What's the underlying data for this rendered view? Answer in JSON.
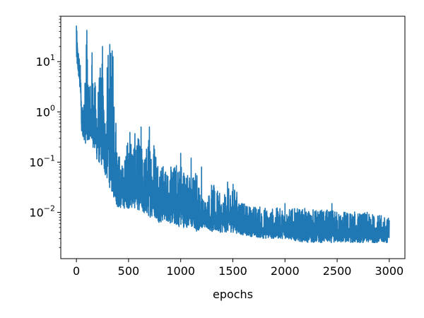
{
  "chart_data": {
    "type": "line",
    "title": "",
    "xlabel": "epochs",
    "ylabel": "",
    "xlim": [
      -150,
      3150
    ],
    "ylim": [
      0.0012,
      80
    ],
    "yscale": "log",
    "grid": false,
    "legend": "none",
    "x_ticks": [
      {
        "value": 0,
        "label": "0"
      },
      {
        "value": 500,
        "label": "500"
      },
      {
        "value": 1000,
        "label": "1000"
      },
      {
        "value": 1500,
        "label": "1500"
      },
      {
        "value": 2000,
        "label": "2000"
      },
      {
        "value": 2500,
        "label": "2500"
      },
      {
        "value": 3000,
        "label": "3000"
      }
    ],
    "y_ticks": [
      {
        "value": 0.01,
        "base": "10",
        "exp": "−2"
      },
      {
        "value": 0.1,
        "base": "10",
        "exp": "−1"
      },
      {
        "value": 1,
        "base": "10",
        "exp": "0"
      },
      {
        "value": 10,
        "base": "10",
        "exp": "1"
      }
    ],
    "series": [
      {
        "color": "#1f77b4",
        "envelope": {
          "x": [
            0,
            20,
            40,
            50,
            80,
            100,
            120,
            150,
            180,
            200,
            250,
            280,
            300,
            350,
            400,
            450,
            500,
            550,
            600,
            650,
            700,
            750,
            800,
            850,
            900,
            1000,
            1100,
            1150,
            1200,
            1250,
            1300,
            1400,
            1500,
            1600,
            1800,
            2000,
            2200,
            2500,
            2800,
            3000
          ],
          "high": [
            50,
            20,
            8,
            1.0,
            4,
            40,
            3,
            12,
            4,
            3,
            18,
            0.6,
            20,
            18,
            0.2,
            0.08,
            0.5,
            0.4,
            0.3,
            0.15,
            0.4,
            0.35,
            0.12,
            0.08,
            0.08,
            0.12,
            0.05,
            0.08,
            0.02,
            0.02,
            0.04,
            0.02,
            0.04,
            0.015,
            0.013,
            0.012,
            0.012,
            0.011,
            0.01,
            0.008
          ],
          "low": [
            10,
            5,
            2,
            0.4,
            0.25,
            0.2,
            0.3,
            0.22,
            0.15,
            0.1,
            0.08,
            0.05,
            0.04,
            0.02,
            0.012,
            0.012,
            0.012,
            0.012,
            0.011,
            0.009,
            0.008,
            0.008,
            0.006,
            0.007,
            0.006,
            0.005,
            0.005,
            0.004,
            0.005,
            0.005,
            0.004,
            0.004,
            0.004,
            0.0035,
            0.003,
            0.003,
            0.0025,
            0.0025,
            0.0025,
            0.0025
          ]
        },
        "spikes": [
          [
            0,
            52
          ],
          [
            100,
            42
          ],
          [
            150,
            15
          ],
          [
            250,
            20
          ],
          [
            320,
            22
          ],
          [
            350,
            9
          ],
          [
            620,
            0.5
          ],
          [
            700,
            0.5
          ],
          [
            1000,
            0.15
          ],
          [
            1100,
            0.12
          ],
          [
            1200,
            0.08
          ],
          [
            1450,
            0.04
          ],
          [
            2000,
            0.015
          ],
          [
            2450,
            0.015
          ]
        ],
        "points": 3000
      }
    ]
  }
}
